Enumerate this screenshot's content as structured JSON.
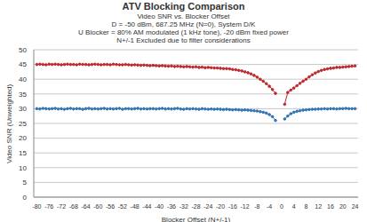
{
  "chart_data": {
    "type": "line",
    "title": "ATV Blocking Comparison",
    "subtitle": [
      "Video SNR vs. Blocker Offset",
      "D = -50 dBm, 687.25 MHz (N=0), System D/K",
      "U Blocker = 80% AM modulated (1 kHz tone), -20 dBm fixed power",
      "N+/-1 Excluded due to filter considerations"
    ],
    "x_label": "Blocker Offset (N+/-1)",
    "y_label": "Video SNR (Unweighted)",
    "x": [
      -80,
      -79,
      -78,
      -77,
      -76,
      -75,
      -74,
      -73,
      -72,
      -71,
      -70,
      -69,
      -68,
      -67,
      -66,
      -65,
      -64,
      -63,
      -62,
      -61,
      -60,
      -59,
      -58,
      -57,
      -56,
      -55,
      -54,
      -53,
      -52,
      -51,
      -50,
      -49,
      -48,
      -47,
      -46,
      -45,
      -44,
      -43,
      -42,
      -41,
      -40,
      -39,
      -38,
      -37,
      -36,
      -35,
      -34,
      -33,
      -32,
      -31,
      -30,
      -29,
      -28,
      -27,
      -26,
      -25,
      -24,
      -23,
      -22,
      -21,
      -20,
      -19,
      -18,
      -17,
      -16,
      -15,
      -14,
      -13,
      -12,
      -11,
      -10,
      -9,
      -8,
      -7,
      -6,
      -5,
      -4,
      -3,
      -2,
      0,
      1,
      2,
      3,
      4,
      5,
      6,
      7,
      8,
      9,
      10,
      11,
      12,
      13,
      14,
      15,
      16,
      17,
      18,
      19,
      20,
      21,
      22,
      23,
      24
    ],
    "series": [
      {
        "color": "#c0282d",
        "marker": "circle",
        "values": [
          45.0,
          45.1,
          45.0,
          44.9,
          45.1,
          45.0,
          45.1,
          45.0,
          44.9,
          45.0,
          45.1,
          45.0,
          45.0,
          44.9,
          45.1,
          45.0,
          45.0,
          44.9,
          45.0,
          45.1,
          45.0,
          44.9,
          45.0,
          45.0,
          44.9,
          45.1,
          45.0,
          44.9,
          44.9,
          45.0,
          44.9,
          44.8,
          44.9,
          44.8,
          44.7,
          44.8,
          44.7,
          44.6,
          44.7,
          44.6,
          44.5,
          44.6,
          44.5,
          44.4,
          44.5,
          44.3,
          44.4,
          44.3,
          44.2,
          44.3,
          44.2,
          44.1,
          44.2,
          44.0,
          44.1,
          43.9,
          44.0,
          43.9,
          43.8,
          43.8,
          43.7,
          43.6,
          43.6,
          43.5,
          43.3,
          43.2,
          43.0,
          42.8,
          42.5,
          42.2,
          41.8,
          41.3,
          40.7,
          40.0,
          39.3,
          38.5,
          37.6,
          36.5,
          35.2,
          null,
          31.5,
          35.5,
          36.3,
          37.0,
          37.8,
          38.6,
          39.3,
          40.0,
          40.8,
          41.5,
          42.1,
          42.6,
          43.0,
          43.3,
          43.5,
          43.7,
          43.8,
          44.0,
          44.0,
          44.1,
          44.2,
          44.3,
          44.4,
          44.5
        ]
      },
      {
        "color": "#2e75b6",
        "marker": "circle",
        "values": [
          30.0,
          29.9,
          30.1,
          30.0,
          29.9,
          30.0,
          30.1,
          29.9,
          30.0,
          29.8,
          30.0,
          30.1,
          29.9,
          30.0,
          30.0,
          29.8,
          30.0,
          30.1,
          29.9,
          30.0,
          29.9,
          30.0,
          30.1,
          29.9,
          30.0,
          29.9,
          30.0,
          30.1,
          29.8,
          30.0,
          30.0,
          29.9,
          30.0,
          30.1,
          29.9,
          30.0,
          29.9,
          30.0,
          30.0,
          29.9,
          30.0,
          30.1,
          29.9,
          30.0,
          29.9,
          30.0,
          30.1,
          29.9,
          29.8,
          30.0,
          29.9,
          30.0,
          29.9,
          29.8,
          30.0,
          29.9,
          29.8,
          29.9,
          29.8,
          29.9,
          29.8,
          29.7,
          29.8,
          29.7,
          29.6,
          29.7,
          29.6,
          29.5,
          29.6,
          29.5,
          29.4,
          29.3,
          29.2,
          29.0,
          28.8,
          28.5,
          28.0,
          27.3,
          26.0,
          null,
          26.5,
          27.5,
          28.3,
          28.8,
          29.1,
          29.3,
          29.5,
          29.6,
          29.7,
          29.8,
          29.8,
          29.9,
          29.9,
          30.0,
          29.9,
          30.0,
          30.0,
          29.9,
          30.0,
          30.0,
          30.1,
          30.0,
          30.0,
          30.0
        ]
      }
    ],
    "xlim": [
      -81,
      25
    ],
    "xticks": [
      -80,
      -76,
      -72,
      -68,
      -64,
      -60,
      -56,
      -52,
      -48,
      -44,
      -40,
      -36,
      -32,
      -28,
      -24,
      -20,
      -16,
      -12,
      -8,
      -4,
      0,
      4,
      8,
      12,
      16,
      20,
      24
    ],
    "ylim": [
      0,
      50
    ],
    "yticks": [
      0,
      5,
      10,
      15,
      20,
      25,
      30,
      35,
      40,
      45,
      50
    ],
    "grid": true
  }
}
